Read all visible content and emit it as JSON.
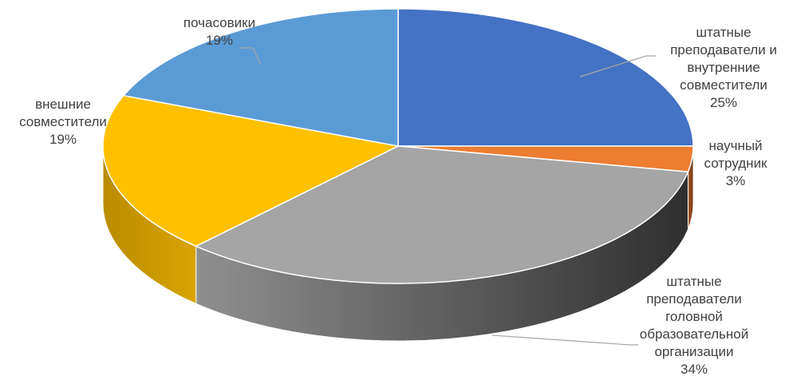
{
  "chart_data": {
    "type": "pie",
    "style": "3d",
    "slices": [
      {
        "label_lines": [
          "штатные",
          "преподаватели и",
          "внутренние",
          "совместители"
        ],
        "value": 25,
        "value_label": "25%",
        "color": "#4472C4"
      },
      {
        "label_lines": [
          "научный",
          "сотрудник"
        ],
        "value": 3,
        "value_label": "3%",
        "color": "#ED7D31"
      },
      {
        "label_lines": [
          "штатные",
          "преподаватели",
          "головной",
          "образовательной",
          "организации"
        ],
        "value": 34,
        "value_label": "34%",
        "color": "#A5A5A5"
      },
      {
        "label_lines": [
          "внешние",
          "совместители"
        ],
        "value": 19,
        "value_label": "19%",
        "color": "#FFC000"
      },
      {
        "label_lines": [
          "почасовики"
        ],
        "value": 19,
        "value_label": "19%",
        "color": "#5B9BD5"
      }
    ],
    "legend": "none",
    "leader_line_color": "#A6A6A6"
  }
}
